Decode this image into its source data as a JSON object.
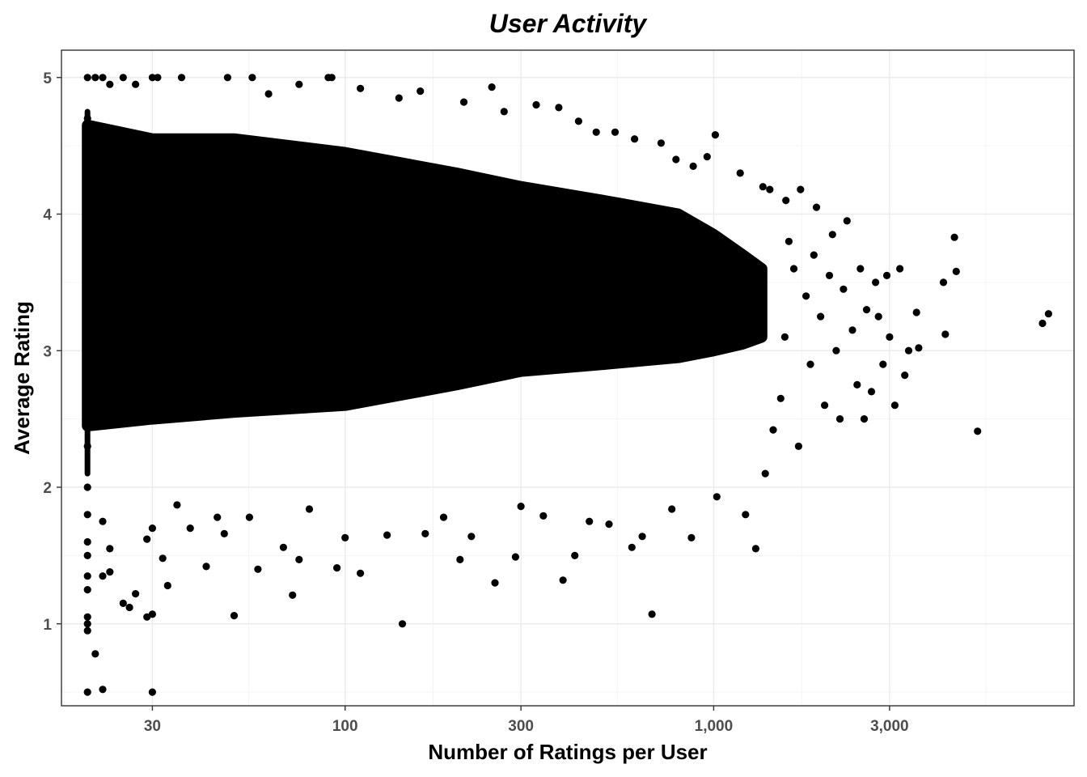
{
  "chart_data": {
    "type": "scatter",
    "title": "User Activity",
    "xlabel": "Number of Ratings per User",
    "ylabel": "Average Rating",
    "x_scale": "log10",
    "xlim": [
      17,
      9500
    ],
    "ylim": [
      0.4,
      5.2
    ],
    "x_ticks": [
      30,
      100,
      300,
      1000,
      3000
    ],
    "x_tick_labels": [
      "30",
      "100",
      "300",
      "1,000",
      "3,000"
    ],
    "y_ticks": [
      1,
      2,
      3,
      4,
      5
    ],
    "y_tick_labels": [
      "1",
      "2",
      "3",
      "4",
      "5"
    ],
    "grid": true,
    "point_color": "#000000",
    "dense_band": {
      "x": [
        20,
        30,
        50,
        100,
        200,
        300,
        500,
        800,
        1000,
        1200,
        1350
      ],
      "upper": [
        4.65,
        4.55,
        4.55,
        4.45,
        4.3,
        4.2,
        4.1,
        4.0,
        3.85,
        3.7,
        3.6
      ],
      "lower": [
        2.45,
        2.5,
        2.55,
        2.6,
        2.75,
        2.85,
        2.9,
        2.95,
        3.0,
        3.05,
        3.1
      ]
    },
    "points": [
      {
        "x": 20,
        "y": 5.0
      },
      {
        "x": 20,
        "y": 4.7
      },
      {
        "x": 20,
        "y": 4.4
      },
      {
        "x": 20,
        "y": 2.3
      },
      {
        "x": 20,
        "y": 2.0
      },
      {
        "x": 20,
        "y": 1.8
      },
      {
        "x": 20,
        "y": 1.6
      },
      {
        "x": 20,
        "y": 1.5
      },
      {
        "x": 20,
        "y": 1.35
      },
      {
        "x": 20,
        "y": 1.25
      },
      {
        "x": 20,
        "y": 1.05
      },
      {
        "x": 20,
        "y": 1.0
      },
      {
        "x": 20,
        "y": 0.95
      },
      {
        "x": 20,
        "y": 0.5
      },
      {
        "x": 21,
        "y": 0.78
      },
      {
        "x": 22,
        "y": 0.52
      },
      {
        "x": 21,
        "y": 5.0
      },
      {
        "x": 22,
        "y": 5.0
      },
      {
        "x": 23,
        "y": 4.95
      },
      {
        "x": 25,
        "y": 5.0
      },
      {
        "x": 27,
        "y": 4.95
      },
      {
        "x": 30,
        "y": 5.0
      },
      {
        "x": 31,
        "y": 5.0
      },
      {
        "x": 36,
        "y": 5.0
      },
      {
        "x": 48,
        "y": 5.0
      },
      {
        "x": 56,
        "y": 5.0
      },
      {
        "x": 90,
        "y": 5.0
      },
      {
        "x": 92,
        "y": 5.0
      },
      {
        "x": 110,
        "y": 4.92
      },
      {
        "x": 160,
        "y": 4.9
      },
      {
        "x": 250,
        "y": 4.93
      },
      {
        "x": 22,
        "y": 1.35
      },
      {
        "x": 23,
        "y": 1.38
      },
      {
        "x": 22,
        "y": 1.75
      },
      {
        "x": 23,
        "y": 1.55
      },
      {
        "x": 25,
        "y": 1.15
      },
      {
        "x": 26,
        "y": 1.12
      },
      {
        "x": 27,
        "y": 1.22
      },
      {
        "x": 29,
        "y": 1.05
      },
      {
        "x": 30,
        "y": 1.07
      },
      {
        "x": 30,
        "y": 0.5
      },
      {
        "x": 29,
        "y": 1.62
      },
      {
        "x": 30,
        "y": 1.7
      },
      {
        "x": 32,
        "y": 1.48
      },
      {
        "x": 33,
        "y": 1.28
      },
      {
        "x": 35,
        "y": 1.87
      },
      {
        "x": 38,
        "y": 1.7
      },
      {
        "x": 42,
        "y": 1.42
      },
      {
        "x": 45,
        "y": 1.78
      },
      {
        "x": 47,
        "y": 1.66
      },
      {
        "x": 50,
        "y": 1.06
      },
      {
        "x": 55,
        "y": 1.78
      },
      {
        "x": 58,
        "y": 1.4
      },
      {
        "x": 68,
        "y": 1.56
      },
      {
        "x": 72,
        "y": 1.21
      },
      {
        "x": 75,
        "y": 1.47
      },
      {
        "x": 80,
        "y": 1.84
      },
      {
        "x": 95,
        "y": 1.41
      },
      {
        "x": 100,
        "y": 1.63
      },
      {
        "x": 110,
        "y": 1.37
      },
      {
        "x": 130,
        "y": 1.65
      },
      {
        "x": 143,
        "y": 1.0
      },
      {
        "x": 165,
        "y": 1.66
      },
      {
        "x": 185,
        "y": 1.78
      },
      {
        "x": 205,
        "y": 1.47
      },
      {
        "x": 220,
        "y": 1.64
      },
      {
        "x": 255,
        "y": 1.3
      },
      {
        "x": 290,
        "y": 1.49
      },
      {
        "x": 300,
        "y": 1.86
      },
      {
        "x": 345,
        "y": 1.79
      },
      {
        "x": 390,
        "y": 1.32
      },
      {
        "x": 420,
        "y": 1.5
      },
      {
        "x": 460,
        "y": 1.75
      },
      {
        "x": 520,
        "y": 1.73
      },
      {
        "x": 600,
        "y": 1.56
      },
      {
        "x": 640,
        "y": 1.64
      },
      {
        "x": 680,
        "y": 1.07
      },
      {
        "x": 770,
        "y": 1.84
      },
      {
        "x": 870,
        "y": 1.63
      },
      {
        "x": 1020,
        "y": 1.93
      },
      {
        "x": 1220,
        "y": 1.8
      },
      {
        "x": 1300,
        "y": 1.55
      },
      {
        "x": 1380,
        "y": 2.1
      },
      {
        "x": 1450,
        "y": 2.42
      },
      {
        "x": 1520,
        "y": 2.65
      },
      {
        "x": 1560,
        "y": 3.1
      },
      {
        "x": 1600,
        "y": 3.8
      },
      {
        "x": 1650,
        "y": 3.6
      },
      {
        "x": 1700,
        "y": 2.3
      },
      {
        "x": 1720,
        "y": 4.18
      },
      {
        "x": 1780,
        "y": 3.4
      },
      {
        "x": 1830,
        "y": 2.9
      },
      {
        "x": 1870,
        "y": 3.7
      },
      {
        "x": 1900,
        "y": 4.05
      },
      {
        "x": 1950,
        "y": 3.25
      },
      {
        "x": 2000,
        "y": 2.6
      },
      {
        "x": 2060,
        "y": 3.55
      },
      {
        "x": 2100,
        "y": 3.85
      },
      {
        "x": 2150,
        "y": 3.0
      },
      {
        "x": 2200,
        "y": 2.5
      },
      {
        "x": 2250,
        "y": 3.45
      },
      {
        "x": 2300,
        "y": 3.95
      },
      {
        "x": 2380,
        "y": 3.15
      },
      {
        "x": 2450,
        "y": 2.75
      },
      {
        "x": 2500,
        "y": 3.6
      },
      {
        "x": 2560,
        "y": 2.5
      },
      {
        "x": 2600,
        "y": 3.3
      },
      {
        "x": 2680,
        "y": 2.7
      },
      {
        "x": 2750,
        "y": 3.5
      },
      {
        "x": 2800,
        "y": 3.25
      },
      {
        "x": 2880,
        "y": 2.9
      },
      {
        "x": 2950,
        "y": 3.55
      },
      {
        "x": 3000,
        "y": 3.1
      },
      {
        "x": 3100,
        "y": 2.6
      },
      {
        "x": 3200,
        "y": 3.6
      },
      {
        "x": 3300,
        "y": 2.82
      },
      {
        "x": 3380,
        "y": 3.0
      },
      {
        "x": 3550,
        "y": 3.28
      },
      {
        "x": 3600,
        "y": 3.02
      },
      {
        "x": 4200,
        "y": 3.5
      },
      {
        "x": 4250,
        "y": 3.12
      },
      {
        "x": 4500,
        "y": 3.83
      },
      {
        "x": 4550,
        "y": 3.58
      },
      {
        "x": 5200,
        "y": 2.41
      },
      {
        "x": 7800,
        "y": 3.2
      },
      {
        "x": 8100,
        "y": 3.27
      },
      {
        "x": 1010,
        "y": 4.58
      },
      {
        "x": 1420,
        "y": 4.18
      },
      {
        "x": 1360,
        "y": 4.2
      },
      {
        "x": 1570,
        "y": 4.1
      },
      {
        "x": 1180,
        "y": 4.3
      },
      {
        "x": 960,
        "y": 4.42
      },
      {
        "x": 880,
        "y": 4.35
      },
      {
        "x": 790,
        "y": 4.4
      },
      {
        "x": 720,
        "y": 4.52
      },
      {
        "x": 610,
        "y": 4.55
      },
      {
        "x": 540,
        "y": 4.6
      },
      {
        "x": 480,
        "y": 4.6
      },
      {
        "x": 430,
        "y": 4.68
      },
      {
        "x": 380,
        "y": 4.78
      },
      {
        "x": 330,
        "y": 4.8
      },
      {
        "x": 270,
        "y": 4.75
      },
      {
        "x": 210,
        "y": 4.82
      },
      {
        "x": 140,
        "y": 4.85
      },
      {
        "x": 75,
        "y": 4.95
      },
      {
        "x": 62,
        "y": 4.88
      }
    ]
  }
}
